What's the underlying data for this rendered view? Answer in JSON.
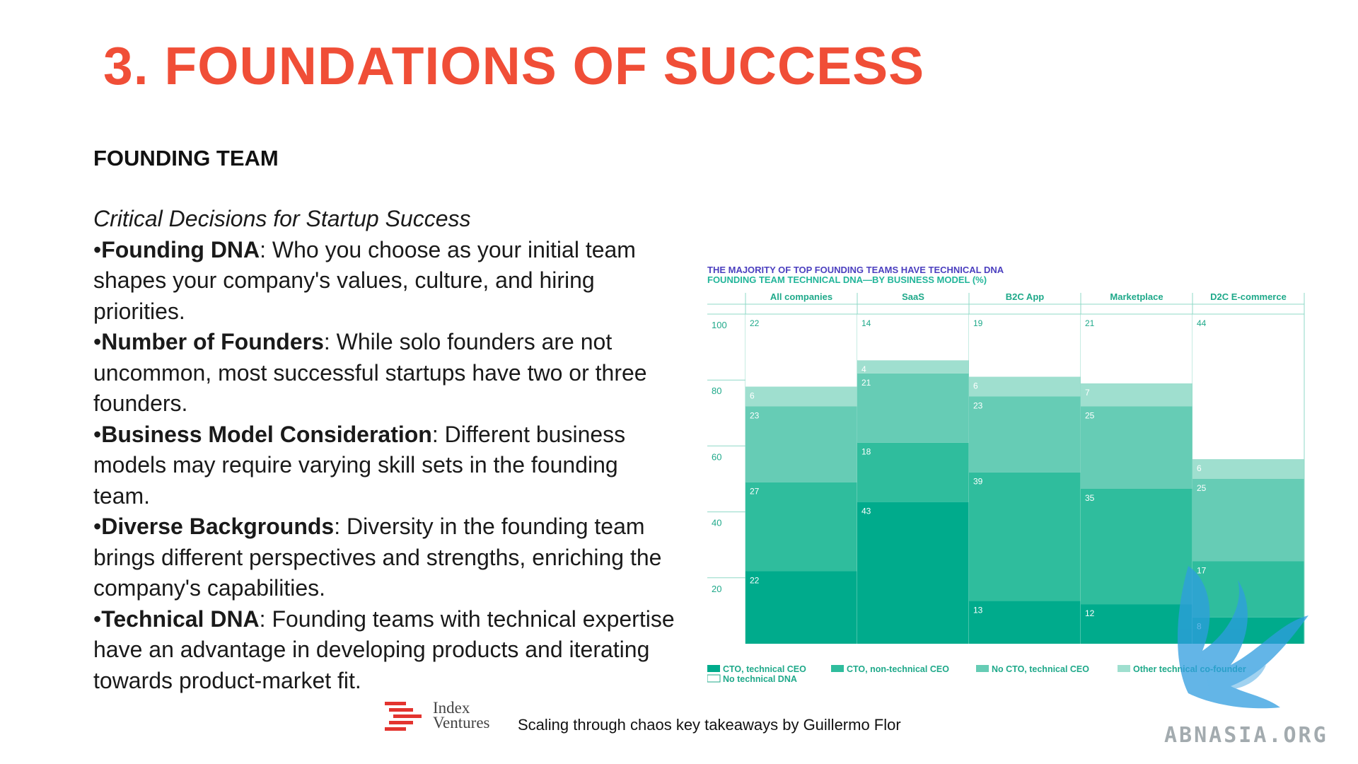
{
  "slide": {
    "title": "3. FOUNDATIONS OF SUCCESS",
    "section": "FOUNDING TEAM",
    "subtitle": "Critical Decisions for Startup Success",
    "bullets": [
      {
        "term": "Founding DNA",
        "text": ": Who you choose as your initial team shapes your company's values, culture, and hiring priorities."
      },
      {
        "term": "Number of Founders",
        "text": ": While solo founders are not uncommon, most successful startups have two or three founders."
      },
      {
        "term": "Business Model Consideration",
        "text": ": Different business models may require varying skill sets in the founding team."
      },
      {
        "term": "Diverse Backgrounds",
        "text": ": Diversity in the founding team brings different perspectives and strengths, enriching the company's capabilities."
      },
      {
        "term": "Technical DNA",
        "text": ": Founding teams with technical expertise have an advantage in developing products and iterating towards product-market fit."
      }
    ],
    "bullet_char": "•",
    "footer": {
      "brand_line1": "Index",
      "brand_line2": "Ventures",
      "caption": "Scaling through chaos key takeaways by Guillermo Flor"
    },
    "watermark": "ABNASIA.ORG"
  },
  "chart_data": {
    "type": "bar",
    "stacked": true,
    "title": "THE MAJORITY OF TOP FOUNDING TEAMS HAVE TECHNICAL DNA",
    "subtitle": "FOUNDING TEAM TECHNICAL DNA—BY BUSINESS MODEL (%)",
    "categories": [
      "All companies",
      "SaaS",
      "B2C App",
      "Marketplace",
      "D2C E-commerce"
    ],
    "ylim": [
      0,
      100
    ],
    "yticks": [
      20,
      40,
      60,
      80,
      100
    ],
    "series": [
      {
        "name": "CTO, technical CEO",
        "values": [
          22,
          43,
          13,
          12,
          8
        ],
        "color": "#00ab8c"
      },
      {
        "name": "CTO, non-technical CEO",
        "values": [
          27,
          18,
          39,
          35,
          17
        ],
        "color": "#2fbd9d"
      },
      {
        "name": "No CTO, technical CEO",
        "values": [
          23,
          21,
          23,
          25,
          25
        ],
        "color": "#66ccb5"
      },
      {
        "name": "Other technical co-founder",
        "values": [
          6,
          4,
          6,
          7,
          6
        ],
        "color": "#9fdfcf"
      },
      {
        "name": "No technical DNA",
        "values": [
          22,
          14,
          19,
          21,
          44
        ],
        "color": "#ffffff"
      }
    ],
    "title_color": "#4b3fbf",
    "subtitle_color": "#22b59a",
    "label_color": "#1fa98a",
    "legend_position": "bottom"
  }
}
